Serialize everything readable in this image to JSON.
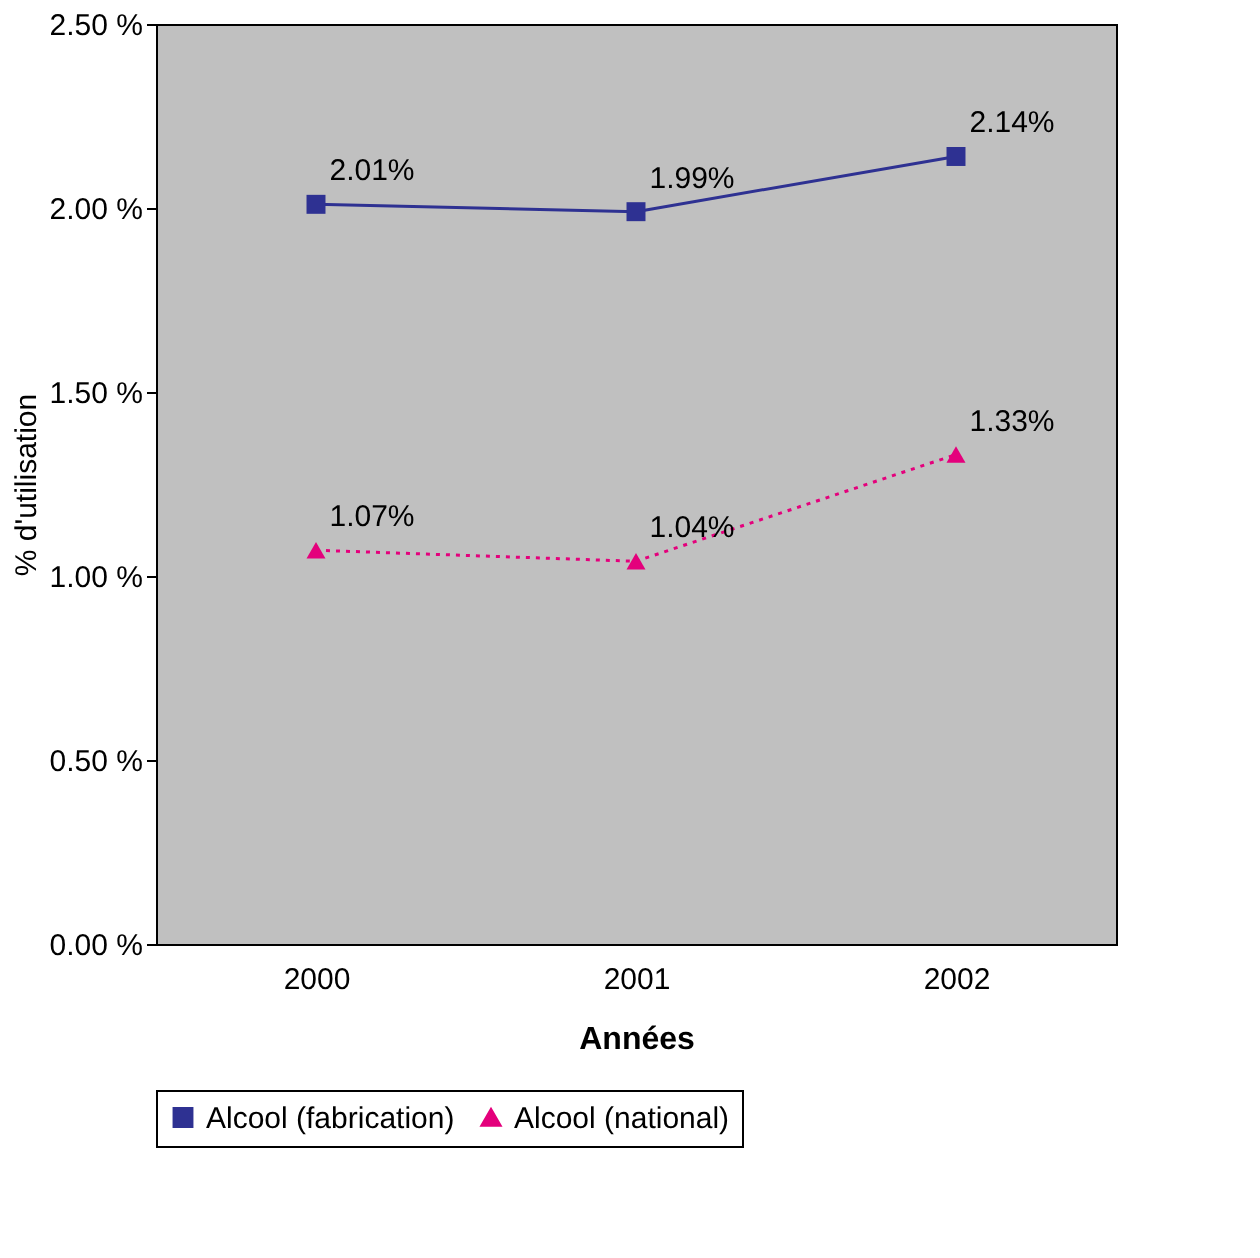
{
  "chart_data": {
    "type": "line",
    "xlabel": "Années",
    "ylabel": "% d'utilisation",
    "categories": [
      "2000",
      "2001",
      "2002"
    ],
    "series": [
      {
        "name": "Alcool (fabrication)",
        "color": "#2e3192",
        "values": [
          2.01,
          1.99,
          2.14
        ],
        "value_labels": [
          "2.01%",
          "1.99%",
          "2.14%"
        ],
        "marker": "square",
        "line_style": "solid"
      },
      {
        "name": "Alcool (national)",
        "color": "#e4007c",
        "values": [
          1.07,
          1.04,
          1.33
        ],
        "value_labels": [
          "1.07%",
          "1.04%",
          "1.33%"
        ],
        "marker": "triangle",
        "line_style": "dotted"
      }
    ],
    "ylim": [
      0,
      2.5
    ],
    "yticks": [
      {
        "value": 0,
        "label": "0.00 %"
      },
      {
        "value": 0.5,
        "label": "0.50 %"
      },
      {
        "value": 1,
        "label": "1.00 %"
      },
      {
        "value": 1.5,
        "label": "1.50 %"
      },
      {
        "value": 2,
        "label": "2.00 %"
      },
      {
        "value": 2.5,
        "label": "2.50 %"
      }
    ],
    "grid": false,
    "legend": "bottom"
  }
}
